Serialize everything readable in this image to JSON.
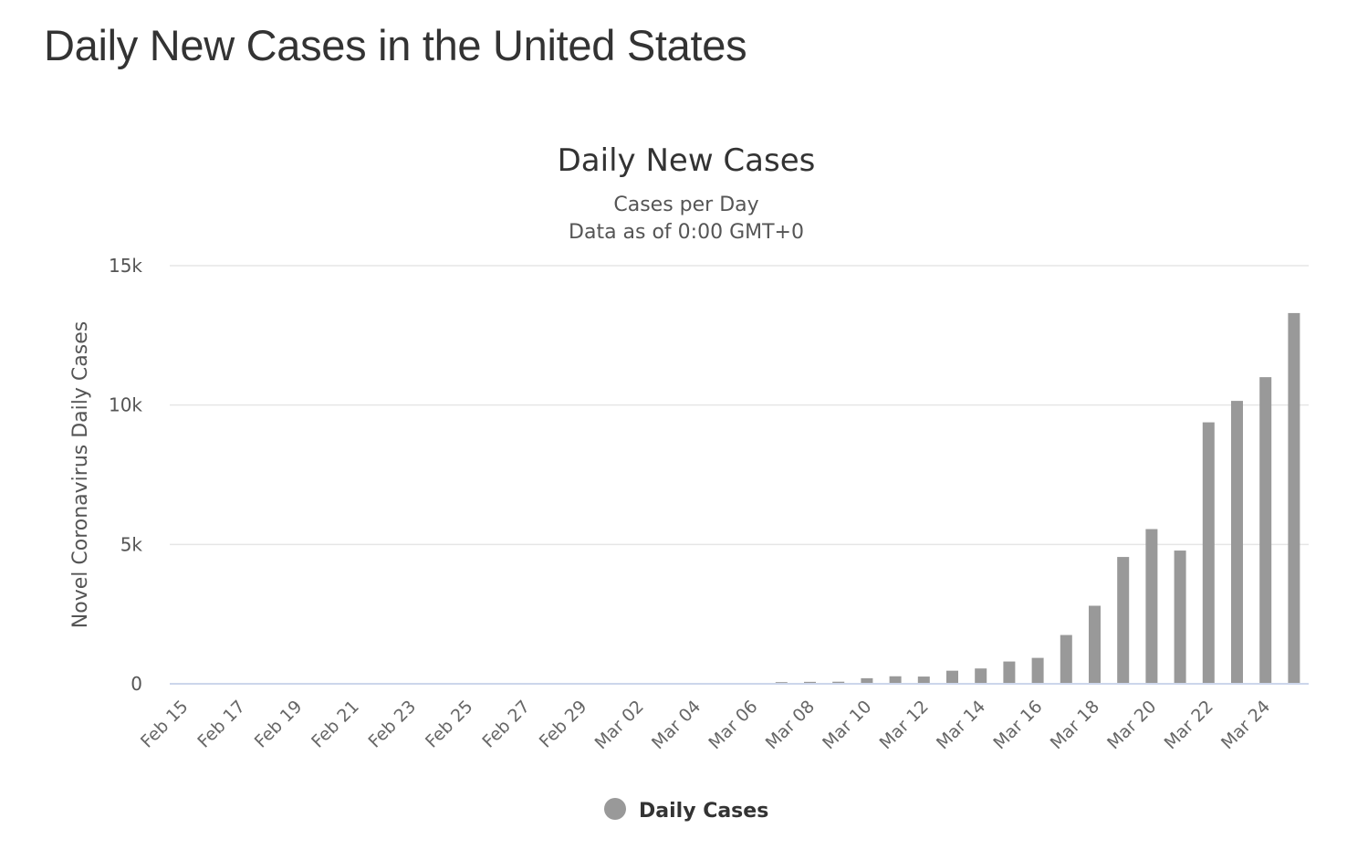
{
  "page": {
    "title": "Daily New Cases in the United States"
  },
  "chart_data": {
    "type": "bar",
    "title": "Daily New Cases",
    "subtitle_lines": [
      "Cases per Day",
      "Data as of 0:00 GMT+0"
    ],
    "xlabel": "",
    "ylabel": "Novel Coronavirus Daily Cases",
    "ylim": [
      0,
      15000
    ],
    "yticks": [
      0,
      5000,
      10000,
      15000
    ],
    "ytick_labels": [
      "0",
      "5k",
      "10k",
      "15k"
    ],
    "grid": true,
    "legend_position": "bottom-center",
    "categories": [
      "Feb 15",
      "Feb 16",
      "Feb 17",
      "Feb 18",
      "Feb 19",
      "Feb 20",
      "Feb 21",
      "Feb 22",
      "Feb 23",
      "Feb 24",
      "Feb 25",
      "Feb 26",
      "Feb 27",
      "Feb 28",
      "Feb 29",
      "Mar 01",
      "Mar 02",
      "Mar 03",
      "Mar 04",
      "Mar 05",
      "Mar 06",
      "Mar 07",
      "Mar 08",
      "Mar 09",
      "Mar 10",
      "Mar 11",
      "Mar 12",
      "Mar 13",
      "Mar 14",
      "Mar 15",
      "Mar 16",
      "Mar 17",
      "Mar 18",
      "Mar 19",
      "Mar 20",
      "Mar 21",
      "Mar 22",
      "Mar 23",
      "Mar 24",
      "Mar 25"
    ],
    "tick_labels": [
      "Feb 15",
      "Feb 17",
      "Feb 19",
      "Feb 21",
      "Feb 23",
      "Feb 25",
      "Feb 27",
      "Feb 29",
      "Mar 02",
      "Mar 04",
      "Mar 06",
      "Mar 08",
      "Mar 10",
      "Mar 12",
      "Mar 14",
      "Mar 16",
      "Mar 18",
      "Mar 20",
      "Mar 22",
      "Mar 24"
    ],
    "series": [
      {
        "name": "Daily Cases",
        "color": "#999999",
        "values": [
          0,
          0,
          0,
          0,
          0,
          0,
          0,
          0,
          0,
          0,
          0,
          0,
          0,
          0,
          0,
          0,
          0,
          0,
          0,
          0,
          0,
          60,
          70,
          75,
          200,
          270,
          260,
          470,
          550,
          800,
          930,
          1750,
          2800,
          4550,
          5550,
          4780,
          9380,
          10150,
          11000,
          13300
        ]
      }
    ]
  }
}
